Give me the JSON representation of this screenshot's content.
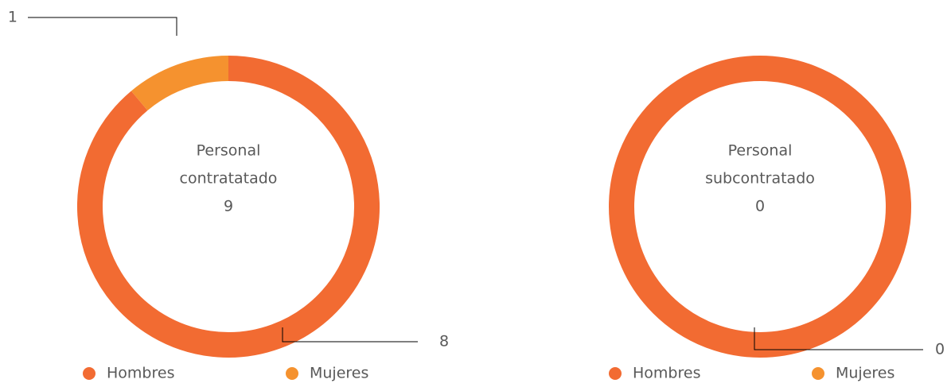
{
  "chart_data": [
    {
      "type": "donut",
      "center_label": [
        "Personal",
        "contratatado"
      ],
      "total": 9,
      "categories": [
        "Hombres",
        "Mujeres"
      ],
      "values": [
        8,
        1
      ],
      "colors": [
        "#f26b32",
        "#f5922f"
      ]
    },
    {
      "type": "donut",
      "center_label": [
        "Personal",
        "subcontratado"
      ],
      "total": 0,
      "categories": [
        "Hombres",
        "Mujeres"
      ],
      "values": [
        0,
        0
      ],
      "colors": [
        "#f26b32",
        "#f5922f"
      ]
    }
  ]
}
